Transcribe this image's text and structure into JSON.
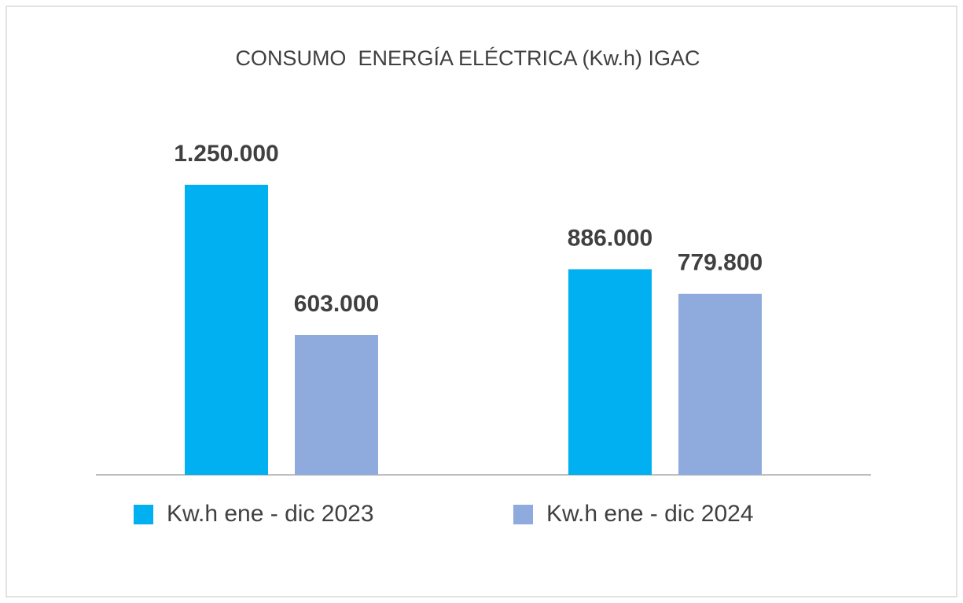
{
  "chart_data": {
    "type": "bar",
    "title": "CONSUMO  ENERGÍA ELÉCTRICA (Kw.h) IGAC",
    "categories": [
      null,
      null
    ],
    "series": [
      {
        "name": "Kw.h ene - dic 2023",
        "color": "#00b0f0",
        "values": [
          1250000,
          886000
        ],
        "value_labels": [
          "1.250.000",
          "886.000"
        ]
      },
      {
        "name": "Kw.h ene - dic 2024",
        "color": "#8faadc",
        "values": [
          603000,
          779800
        ],
        "value_labels": [
          "603.000",
          "779.800"
        ]
      }
    ],
    "legend": "bottom"
  }
}
